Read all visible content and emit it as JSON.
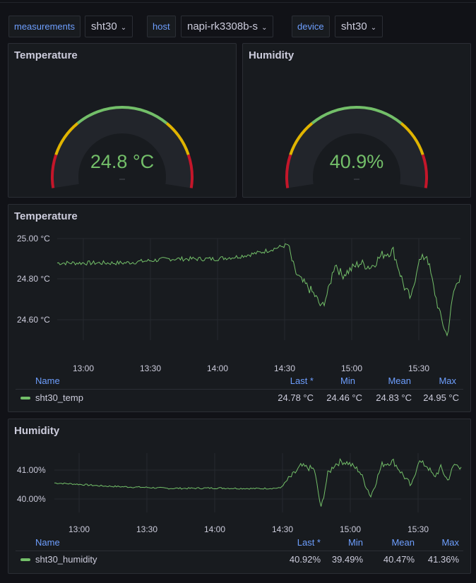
{
  "variables": [
    {
      "label": "measurements",
      "value": "sht30"
    },
    {
      "label": "host",
      "value": "napi-rk3308b-s"
    },
    {
      "label": "device",
      "value": "sht30"
    }
  ],
  "gauges": {
    "temperature": {
      "title": "Temperature",
      "display": "24.8 °C",
      "value": 24.8,
      "min": 0,
      "max": 40
    },
    "humidity": {
      "title": "Humidity",
      "display": "40.9%",
      "value": 40.9,
      "min": 0,
      "max": 100
    }
  },
  "colors": {
    "green": "#73bf69",
    "yellow": "#e0b400",
    "red": "#c4162a",
    "blue_label": "#6e9fff"
  },
  "temp_chart": {
    "title": "Temperature",
    "y_ticks": [
      "25.00 °C",
      "24.80 °C",
      "24.60 °C"
    ],
    "x_ticks": [
      "13:00",
      "13:30",
      "14:00",
      "14:30",
      "15:00",
      "15:30"
    ],
    "legend": {
      "headers": [
        "Name",
        "Last *",
        "Min",
        "Mean",
        "Max"
      ],
      "series_name": "sht30_temp",
      "values": [
        "24.78 °C",
        "24.46 °C",
        "24.83 °C",
        "24.95 °C"
      ]
    }
  },
  "humid_chart": {
    "title": "Humidity",
    "y_ticks": [
      "41.00%",
      "40.00%"
    ],
    "x_ticks": [
      "13:00",
      "13:30",
      "14:00",
      "14:30",
      "15:00",
      "15:30"
    ],
    "legend": {
      "headers": [
        "Name",
        "Last *",
        "Min",
        "Mean",
        "Max"
      ],
      "series_name": "sht30_humidity",
      "values": [
        "40.92%",
        "39.49%",
        "40.47%",
        "41.36%"
      ]
    }
  },
  "chart_data": [
    {
      "type": "line",
      "title": "Temperature",
      "ylim": [
        24.46,
        24.96
      ],
      "x": [
        "12:50",
        "13:00",
        "13:10",
        "13:20",
        "13:30",
        "13:40",
        "13:50",
        "14:00",
        "14:10",
        "14:20",
        "14:30",
        "14:33",
        "14:36",
        "14:39",
        "14:42",
        "14:45",
        "14:48",
        "14:51",
        "14:54",
        "14:57",
        "15:00",
        "15:05",
        "15:10",
        "15:15",
        "15:20",
        "15:25",
        "15:28",
        "15:31",
        "15:35",
        "15:38",
        "15:41",
        "15:44",
        "15:47",
        "15:50"
      ],
      "series": [
        {
          "name": "sht30_temp",
          "values": [
            24.84,
            24.84,
            24.84,
            24.84,
            24.85,
            24.86,
            24.86,
            24.86,
            24.87,
            24.89,
            24.92,
            24.93,
            24.8,
            24.75,
            24.72,
            24.68,
            24.62,
            24.7,
            24.84,
            24.78,
            24.8,
            24.84,
            24.82,
            24.88,
            24.9,
            24.72,
            24.66,
            24.84,
            24.88,
            24.72,
            24.58,
            24.48,
            24.7,
            24.78
          ]
        }
      ]
    },
    {
      "type": "line",
      "title": "Humidity",
      "ylim": [
        39.49,
        41.36
      ],
      "x": [
        "12:50",
        "13:00",
        "13:10",
        "13:20",
        "13:30",
        "13:40",
        "13:50",
        "14:00",
        "14:10",
        "14:20",
        "14:30",
        "14:33",
        "14:36",
        "14:39",
        "14:42",
        "14:45",
        "14:48",
        "14:51",
        "14:54",
        "14:57",
        "15:00",
        "15:05",
        "15:10",
        "15:15",
        "15:20",
        "15:25",
        "15:28",
        "15:31",
        "15:35",
        "15:38",
        "15:41",
        "15:44",
        "15:47",
        "15:50"
      ],
      "series": [
        {
          "name": "sht30_humidity",
          "values": [
            40.42,
            40.38,
            40.33,
            40.3,
            40.28,
            40.25,
            40.25,
            40.26,
            40.25,
            40.24,
            40.26,
            40.5,
            40.7,
            40.95,
            40.9,
            40.85,
            39.6,
            40.7,
            41.0,
            41.1,
            41.05,
            40.8,
            40.0,
            41.0,
            41.1,
            40.6,
            40.3,
            41.1,
            40.95,
            40.6,
            40.9,
            40.5,
            41.0,
            40.92
          ]
        }
      ]
    }
  ]
}
